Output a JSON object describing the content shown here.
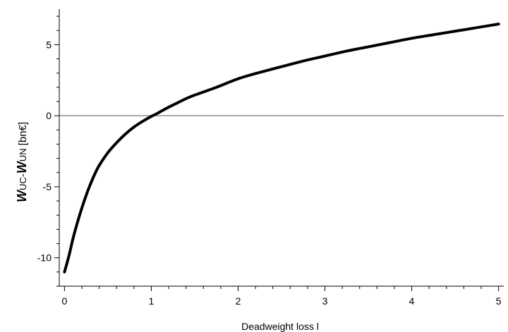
{
  "chart_data": {
    "type": "line",
    "title": "",
    "xlabel": "Deadweight loss l",
    "ylabel": {
      "w1": "W",
      "sub1": "UC",
      "dash": "-",
      "w2": "W",
      "sub2": "UN",
      "unit": " [bn€]"
    },
    "xlim": [
      -0.06,
      5.06
    ],
    "ylim": [
      -12,
      7.5
    ],
    "x_ticks": [
      0,
      1,
      2,
      3,
      4,
      5
    ],
    "x_tick_labels": [
      "0",
      "1",
      "2",
      "3",
      "4",
      "5"
    ],
    "y_ticks": [
      -10,
      -5,
      0,
      5
    ],
    "y_tick_labels": [
      "-10",
      "-5",
      "0",
      "5"
    ],
    "grid": false,
    "legend": "none",
    "reference_line": {
      "y": 0
    },
    "series": [
      {
        "line_color": "#000000",
        "points": [
          [
            0.0,
            -11.0
          ],
          [
            0.05,
            -9.9
          ],
          [
            0.1,
            -8.6
          ],
          [
            0.15,
            -7.5
          ],
          [
            0.2,
            -6.5
          ],
          [
            0.25,
            -5.6
          ],
          [
            0.3,
            -4.8
          ],
          [
            0.35,
            -4.1
          ],
          [
            0.4,
            -3.5
          ],
          [
            0.5,
            -2.6
          ],
          [
            0.6,
            -1.9
          ],
          [
            0.7,
            -1.3
          ],
          [
            0.8,
            -0.8
          ],
          [
            0.9,
            -0.4
          ],
          [
            1.0,
            -0.05
          ],
          [
            1.05,
            0.1
          ],
          [
            1.1,
            0.27
          ],
          [
            1.2,
            0.6
          ],
          [
            1.3,
            0.9
          ],
          [
            1.4,
            1.2
          ],
          [
            1.5,
            1.45
          ],
          [
            1.75,
            2.0
          ],
          [
            2.0,
            2.6
          ],
          [
            2.25,
            3.05
          ],
          [
            2.5,
            3.45
          ],
          [
            2.75,
            3.85
          ],
          [
            3.0,
            4.2
          ],
          [
            3.25,
            4.55
          ],
          [
            3.5,
            4.85
          ],
          [
            3.75,
            5.15
          ],
          [
            4.0,
            5.45
          ],
          [
            4.25,
            5.7
          ],
          [
            4.5,
            5.95
          ],
          [
            4.75,
            6.2
          ],
          [
            5.0,
            6.45
          ]
        ]
      }
    ]
  }
}
